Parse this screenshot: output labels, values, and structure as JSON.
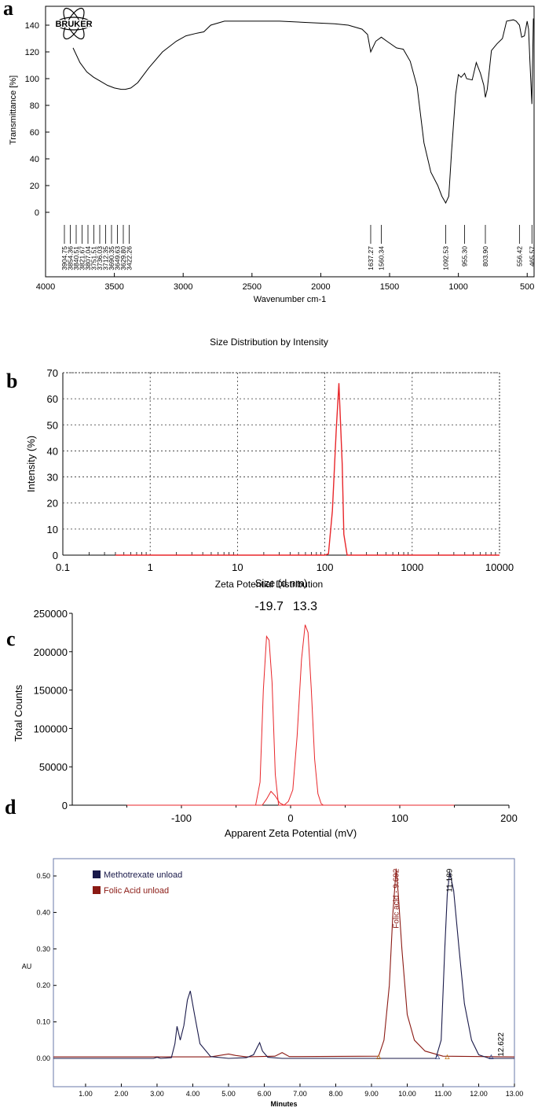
{
  "labels": {
    "a": "a",
    "b": "b",
    "c": "c",
    "d": "d"
  },
  "chart_data": [
    {
      "id": "a",
      "type": "line",
      "brand": "BRUKER",
      "ylabel": "Transmittance [%]",
      "xlabel": "Wavenumber cm-1",
      "xlim": [
        4000,
        450
      ],
      "ylim": [
        0,
        145
      ],
      "xticks": [
        "4000",
        "3500",
        "3000",
        "2500",
        "2000",
        "1500",
        "1000",
        "500"
      ],
      "yticks": [
        "0",
        "20",
        "40",
        "60",
        "80",
        "100",
        "120",
        "140"
      ],
      "peak_labels": [
        "3904.75",
        "3854.36",
        "3840.51",
        "3821.67",
        "3807.04",
        "3751.51",
        "3736.03",
        "3712.35",
        "3690.35",
        "3649.63",
        "3629.80",
        "3422.26",
        "1637.27",
        "1560.34",
        "1092.53",
        "955.30",
        "803.90",
        "556.42",
        "465.57"
      ],
      "color": "#000000",
      "x": [
        3800,
        3750,
        3700,
        3650,
        3600,
        3550,
        3500,
        3450,
        3420,
        3380,
        3330,
        3250,
        3150,
        3050,
        2980,
        2900,
        2850,
        2800,
        2700,
        2600,
        2500,
        2300,
        2100,
        1900,
        1800,
        1700,
        1660,
        1637,
        1600,
        1560,
        1520,
        1450,
        1400,
        1350,
        1300,
        1250,
        1200,
        1150,
        1120,
        1092,
        1070,
        1050,
        1020,
        1000,
        980,
        955,
        940,
        900,
        870,
        840,
        815,
        804,
        790,
        760,
        720,
        680,
        650,
        600,
        580,
        556,
        540,
        520,
        500,
        490,
        480,
        466,
        455
      ],
      "y": [
        123,
        112,
        105,
        101,
        98,
        95,
        93,
        92,
        92,
        93,
        97,
        108,
        120,
        128,
        132,
        134,
        135,
        140,
        143,
        143,
        143,
        143,
        142,
        141,
        140,
        137,
        133,
        120,
        128,
        131,
        128,
        123,
        122,
        113,
        94,
        52,
        30,
        20,
        12,
        7,
        12,
        45,
        88,
        103,
        101,
        104,
        100,
        99,
        112,
        104,
        95,
        86,
        92,
        121,
        126,
        130,
        143,
        144,
        143,
        140,
        131,
        132,
        143,
        137,
        113,
        81,
        145
      ]
    },
    {
      "id": "b",
      "type": "line",
      "title": "Size Distribution by Intensity",
      "ylabel": "Intensity (%)",
      "xlabel": "Size (d.nm)",
      "xscale": "log",
      "xlim": [
        0.1,
        10000
      ],
      "ylim": [
        0,
        70
      ],
      "xticks": [
        "0.1",
        "1",
        "10",
        "100",
        "1000",
        "10000"
      ],
      "yticks": [
        "0",
        "10",
        "20",
        "30",
        "40",
        "50",
        "60",
        "70"
      ],
      "grid": true,
      "color": "#e8262a",
      "x": [
        0.4,
        100,
        110,
        122,
        135,
        145,
        158,
        165,
        180,
        10000
      ],
      "y": [
        0,
        0,
        0.5,
        17,
        48,
        66,
        35,
        8,
        0,
        0
      ]
    },
    {
      "id": "c",
      "type": "line",
      "title": "Zeta Potential Distribution",
      "ylabel": "Total Counts",
      "xlabel": "Apparent Zeta Potential (mV)",
      "xlim": [
        -200,
        200
      ],
      "ylim": [
        0,
        250000
      ],
      "xticks": [
        "-100",
        "0",
        "100",
        "200"
      ],
      "yticks": [
        "0",
        "50000",
        "100000",
        "150000",
        "200000",
        "250000"
      ],
      "annotations": [
        "-19.7",
        "13.3"
      ],
      "color": "#e8262a",
      "series": [
        {
          "x": [
            -150,
            -32,
            -28,
            -25,
            -22,
            -19.7,
            -17,
            -14,
            -11,
            150
          ],
          "y": [
            0,
            0,
            30000,
            150000,
            220000,
            215000,
            160000,
            40000,
            0,
            0
          ]
        },
        {
          "x": [
            -150,
            -26,
            -22,
            -18,
            -14,
            -10,
            -6,
            -2,
            2,
            6,
            10,
            13.3,
            16,
            19,
            22,
            25,
            28,
            30,
            150
          ],
          "y": [
            0,
            0,
            8000,
            18000,
            12000,
            3000,
            0,
            5000,
            20000,
            90000,
            190000,
            235000,
            225000,
            150000,
            60000,
            15000,
            2000,
            0,
            0
          ]
        }
      ]
    },
    {
      "id": "d",
      "type": "line",
      "ylabel": "AU",
      "xlabel": "Minutes",
      "xlim": [
        0.1,
        13.0
      ],
      "ylim": [
        -0.01,
        0.53
      ],
      "xticks": [
        "1.00",
        "2.00",
        "3.00",
        "4.00",
        "5.00",
        "6.00",
        "7.00",
        "8.00",
        "9.00",
        "10.00",
        "11.00",
        "12.00",
        "13.00"
      ],
      "yticks": [
        "0.00",
        "0.10",
        "0.20",
        "0.30",
        "0.40",
        "0.50"
      ],
      "legend": "top-left",
      "peak_annotations": [
        "Folic acid - 9.692",
        "11.189",
        "12.622"
      ],
      "colors": {
        "methotrexate": "#1a1a4a",
        "folic_acid": "#8b1a14"
      },
      "series": [
        {
          "name": "Methotrexate unload",
          "x": [
            0.1,
            2.9,
            3.0,
            3.1,
            3.4,
            3.5,
            3.56,
            3.65,
            3.75,
            3.85,
            3.93,
            4.05,
            4.2,
            4.5,
            5.0,
            5.5,
            5.7,
            5.8,
            5.87,
            5.95,
            6.1,
            6.5,
            7,
            8,
            9,
            10,
            10.8,
            10.95,
            11.05,
            11.12,
            11.19,
            11.3,
            11.45,
            11.6,
            11.8,
            12.0,
            12.3,
            12.6,
            13.0
          ],
          "y": [
            0.0,
            0.0,
            0.003,
            0.0,
            0.002,
            0.04,
            0.088,
            0.05,
            0.09,
            0.16,
            0.185,
            0.12,
            0.04,
            0.005,
            0.0,
            0.002,
            0.01,
            0.03,
            0.043,
            0.02,
            0.003,
            0.0,
            0.0,
            0.0,
            0.0,
            0.0,
            0.0,
            0.05,
            0.3,
            0.45,
            0.51,
            0.46,
            0.3,
            0.15,
            0.05,
            0.01,
            0.0,
            0.0,
            0.0
          ]
        },
        {
          "name": "Folic Acid unload",
          "x": [
            0.1,
            4.5,
            5.0,
            5.2,
            5.5,
            6.3,
            6.5,
            6.7,
            9.2,
            9.35,
            9.5,
            9.6,
            9.69,
            9.75,
            9.85,
            10.0,
            10.2,
            10.5,
            11.0,
            13.0
          ],
          "y": [
            0.004,
            0.004,
            0.012,
            0.008,
            0.004,
            0.006,
            0.016,
            0.005,
            0.006,
            0.05,
            0.2,
            0.4,
            0.52,
            0.45,
            0.3,
            0.12,
            0.05,
            0.02,
            0.006,
            0.004
          ]
        }
      ]
    }
  ]
}
